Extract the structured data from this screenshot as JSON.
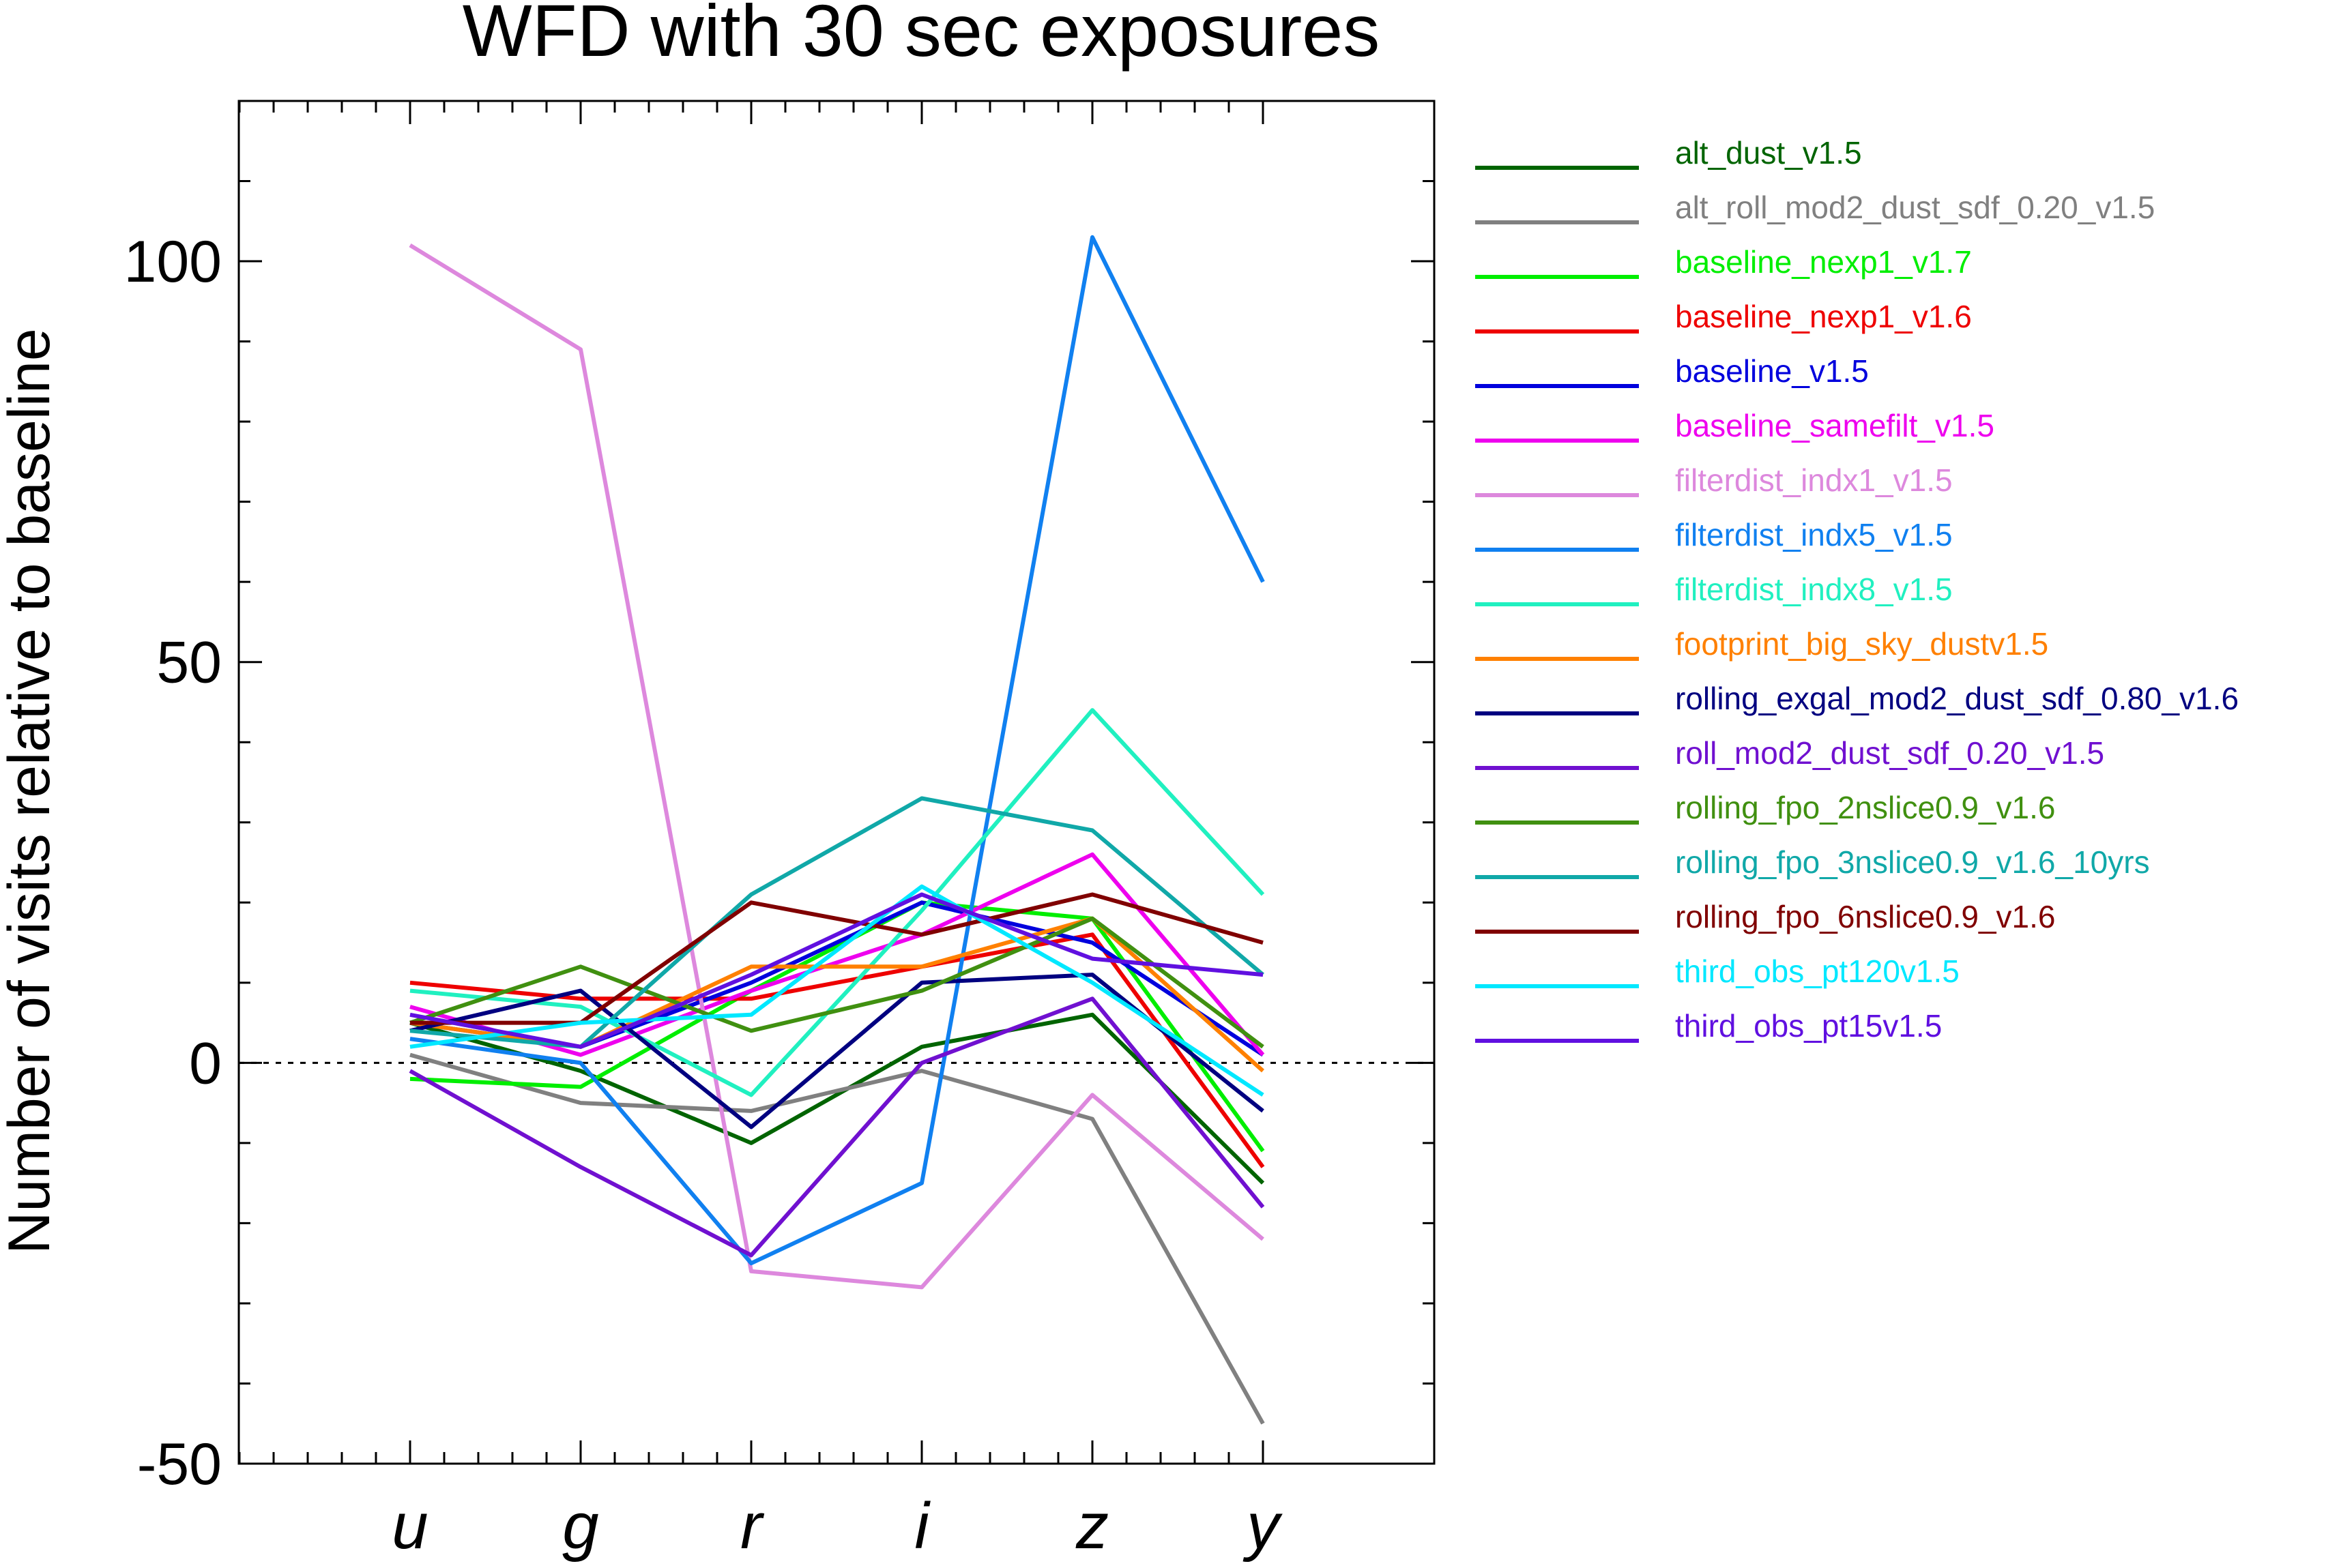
{
  "chart_data": {
    "type": "line",
    "title": "WFD with 30 sec exposures",
    "xlabel": "",
    "ylabel": "Number of visits relative to baseline",
    "categories": [
      "u",
      "g",
      "r",
      "i",
      "z",
      "y"
    ],
    "ylim": [
      -50,
      120
    ],
    "yticks": [
      -50,
      0,
      50,
      100
    ],
    "ytick_labels": [
      "-50",
      "0",
      "50",
      "100"
    ],
    "reference_line": 0,
    "grid": false,
    "legend_position": "right",
    "series": [
      {
        "name": "alt_dust_v1.5",
        "color": "#006400",
        "values": [
          5,
          -1,
          -10,
          2,
          6,
          -15
        ]
      },
      {
        "name": "alt_roll_mod2_dust_sdf_0.20_v1.5",
        "color": "#808080",
        "values": [
          1,
          -5,
          -6,
          -1,
          -7,
          -45
        ]
      },
      {
        "name": "baseline_nexp1_v1.7",
        "color": "#00ee00",
        "values": [
          -2,
          -3,
          9,
          20,
          18,
          -11
        ]
      },
      {
        "name": "baseline_nexp1_v1.6",
        "color": "#ee0000",
        "values": [
          10,
          8,
          8,
          12,
          16,
          -13
        ]
      },
      {
        "name": "baseline_v1.5",
        "color": "#0000dd",
        "values": [
          5,
          2,
          10,
          20,
          15,
          1
        ]
      },
      {
        "name": "baseline_samefilt_v1.5",
        "color": "#ee00ee",
        "values": [
          7,
          1,
          9,
          16,
          26,
          1
        ]
      },
      {
        "name": "filterdist_indx1_v1.5",
        "color": "#dd88dd",
        "values": [
          102,
          89,
          -26,
          -28,
          -4,
          -22
        ]
      },
      {
        "name": "filterdist_indx5_v1.5",
        "color": "#1080f0",
        "values": [
          3,
          0,
          -25,
          -15,
          103,
          60
        ]
      },
      {
        "name": "filterdist_indx8_v1.5",
        "color": "#20f0c0",
        "values": [
          9,
          7,
          -4,
          19,
          44,
          21
        ]
      },
      {
        "name": "footprint_big_sky_dustv1.5",
        "color": "#ff8000",
        "values": [
          5,
          2,
          12,
          12,
          18,
          -1
        ]
      },
      {
        "name": "rolling_exgal_mod2_dust_sdf_0.80_v1.6",
        "color": "#000080",
        "values": [
          4,
          9,
          -8,
          10,
          11,
          -6
        ]
      },
      {
        "name": "roll_mod2_dust_sdf_0.20_v1.5",
        "color": "#7010d0",
        "values": [
          -1,
          -13,
          -24,
          0,
          8,
          -18
        ]
      },
      {
        "name": "rolling_fpo_2nslice0.9_v1.6",
        "color": "#409010",
        "values": [
          5,
          12,
          4,
          9,
          18,
          2
        ]
      },
      {
        "name": "rolling_fpo_3nslice0.9_v1.6_10yrs",
        "color": "#10a8a8",
        "values": [
          4,
          2,
          21,
          33,
          29,
          11
        ]
      },
      {
        "name": "rolling_fpo_6nslice0.9_v1.6",
        "color": "#800000",
        "values": [
          5,
          5,
          20,
          16,
          21,
          15
        ]
      },
      {
        "name": "third_obs_pt120v1.5",
        "color": "#00e8ff",
        "values": [
          2,
          5,
          6,
          22,
          10,
          -4
        ]
      },
      {
        "name": "third_obs_pt15v1.5",
        "color": "#6010e0",
        "values": [
          6,
          2,
          11,
          21,
          13,
          11
        ]
      }
    ]
  }
}
